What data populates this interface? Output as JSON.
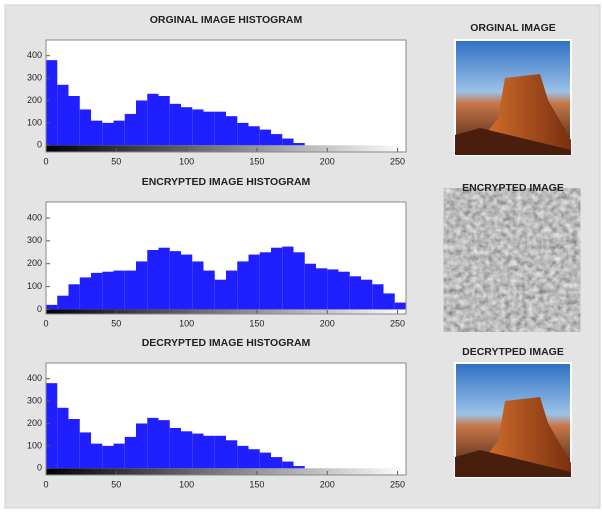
{
  "chart_data": [
    {
      "type": "histogram",
      "title": "ORGINAL IMAGE HISTOGRAM",
      "color": "#1f1fff",
      "bins": [
        0,
        8,
        16,
        24,
        32,
        40,
        48,
        56,
        64,
        72,
        80,
        88,
        96,
        104,
        112,
        120,
        128,
        136,
        144,
        152,
        160,
        168,
        176,
        184,
        192,
        200,
        208,
        216,
        224,
        232,
        240,
        248,
        256
      ],
      "values": [
        380,
        270,
        220,
        160,
        110,
        100,
        110,
        140,
        200,
        230,
        220,
        185,
        170,
        160,
        150,
        150,
        130,
        100,
        85,
        70,
        50,
        30,
        10,
        0,
        0,
        0,
        0,
        0,
        0,
        0,
        0,
        0
      ],
      "xlim": [
        0,
        256
      ],
      "ylim": [
        -30,
        470
      ],
      "xticks": [
        0,
        50,
        100,
        150,
        200,
        250
      ],
      "yticks": [
        0,
        100,
        200,
        300,
        400
      ]
    },
    {
      "type": "histogram",
      "title": "ENCRYPTED IMAGE HISTOGRAM",
      "color": "#1f1fff",
      "bins": [
        0,
        8,
        16,
        24,
        32,
        40,
        48,
        56,
        64,
        72,
        80,
        88,
        96,
        104,
        112,
        120,
        128,
        136,
        144,
        152,
        160,
        168,
        176,
        184,
        192,
        200,
        208,
        216,
        224,
        232,
        240,
        248,
        256
      ],
      "values": [
        20,
        60,
        110,
        140,
        160,
        165,
        170,
        170,
        210,
        260,
        270,
        255,
        240,
        210,
        170,
        130,
        170,
        210,
        240,
        250,
        270,
        275,
        250,
        200,
        180,
        175,
        165,
        145,
        130,
        110,
        70,
        30
      ],
      "xlim": [
        0,
        256
      ],
      "ylim": [
        -20,
        470
      ],
      "xticks": [
        0,
        50,
        100,
        150,
        200,
        250
      ],
      "yticks": [
        0,
        100,
        200,
        300,
        400
      ]
    },
    {
      "type": "histogram",
      "title": "DECRYPTED  IMAGE HISTOGRAM",
      "color": "#1f1fff",
      "bins": [
        0,
        8,
        16,
        24,
        32,
        40,
        48,
        56,
        64,
        72,
        80,
        88,
        96,
        104,
        112,
        120,
        128,
        136,
        144,
        152,
        160,
        168,
        176,
        184,
        192,
        200,
        208,
        216,
        224,
        232,
        240,
        248,
        256
      ],
      "values": [
        380,
        270,
        220,
        160,
        110,
        100,
        110,
        140,
        200,
        225,
        215,
        180,
        165,
        155,
        145,
        145,
        125,
        100,
        85,
        70,
        50,
        30,
        10,
        0,
        0,
        0,
        0,
        0,
        0,
        0,
        0,
        0
      ],
      "xlim": [
        0,
        256
      ],
      "ylim": [
        -30,
        470
      ],
      "xticks": [
        0,
        50,
        100,
        150,
        200,
        250
      ],
      "yticks": [
        0,
        100,
        200,
        300,
        400
      ]
    }
  ],
  "images": [
    {
      "title": "ORGINAL IMAGE"
    },
    {
      "title": "ENCRYPTED IMAGE"
    },
    {
      "title": "DECRYTPED IMAGE"
    }
  ]
}
